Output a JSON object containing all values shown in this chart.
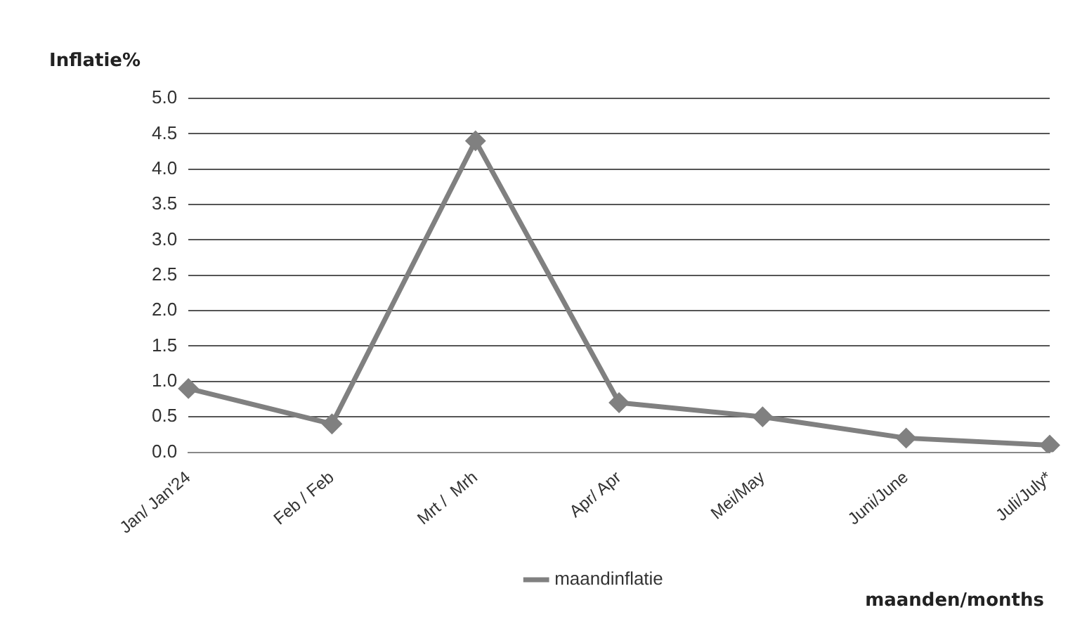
{
  "chart_data": {
    "type": "line",
    "ylabel": "Inflatie%",
    "xlabel": "maanden/months",
    "categories": [
      "Jan/ Jan'24",
      "Feb / Feb",
      "Mrt /  Mrh",
      "Apr/ Apr",
      "Mei/May",
      "Juni/June",
      "Juli/July*"
    ],
    "series": [
      {
        "name": "maandinflatie",
        "color": "#808080",
        "values": [
          0.9,
          0.4,
          4.4,
          0.7,
          0.5,
          0.2,
          0.1
        ]
      }
    ],
    "ylim": [
      0,
      5
    ],
    "yticks": [
      {
        "value": 0,
        "label": "0.0"
      },
      0.5,
      {
        "value": 1,
        "label": "1.0"
      },
      1.5,
      {
        "value": 2,
        "label": "2.0"
      },
      2.5,
      {
        "value": 3,
        "label": "3.0"
      },
      3.5,
      {
        "value": 4,
        "label": "4.0"
      },
      4.5,
      {
        "value": 5,
        "label": "5.0"
      }
    ],
    "grid": "y",
    "legend": "bottom",
    "marker": "diamond",
    "line_style": "solid"
  }
}
